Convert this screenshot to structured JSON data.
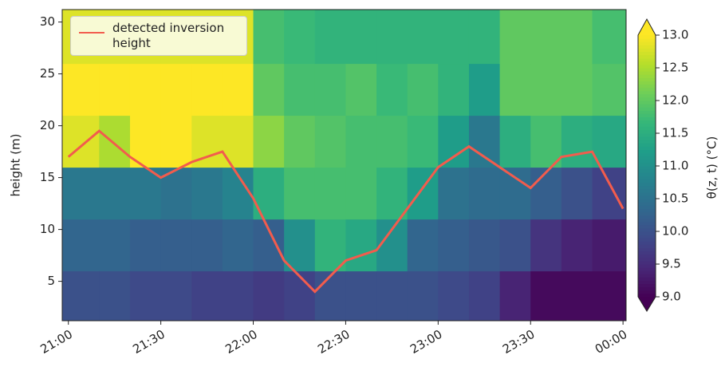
{
  "chart_data": {
    "type": "heatmap",
    "ylabel": "height (m)",
    "colorbar_label": "θ(z, t) (°C)",
    "colormap": "viridis",
    "xlim": [
      "20:58",
      "00:01"
    ],
    "ylim": [
      1.2,
      31.2
    ],
    "clim": [
      9,
      13
    ],
    "xticks": [
      "21:00",
      "21:30",
      "22:00",
      "22:30",
      "23:00",
      "23:30",
      "00:00"
    ],
    "yticks": [
      5,
      10,
      15,
      20,
      25,
      30
    ],
    "colorbar_ticks": [
      {
        "value": 9,
        "label": "9.0"
      },
      {
        "value": 9.5,
        "label": "9.5"
      },
      {
        "value": 10,
        "label": "10.0"
      },
      {
        "value": 10.5,
        "label": "10.5"
      },
      {
        "value": 11,
        "label": "11.0"
      },
      {
        "value": 11.5,
        "label": "11.5"
      },
      {
        "value": 12,
        "label": "12.0"
      },
      {
        "value": 12.5,
        "label": "12.5"
      },
      {
        "value": 13,
        "label": "13.0"
      }
    ],
    "x_edges": [
      "20:58",
      "21:10",
      "21:20",
      "21:30",
      "21:40",
      "21:50",
      "22:00",
      "22:10",
      "22:20",
      "22:30",
      "22:40",
      "22:50",
      "23:00",
      "23:10",
      "23:20",
      "23:30",
      "23:40",
      "23:50",
      "00:01"
    ],
    "y_edges": [
      1.2,
      6,
      11,
      16,
      21,
      26,
      31.2
    ],
    "z": [
      [
        10.0,
        10.3,
        10.6,
        12.8,
        13,
        12.8
      ],
      [
        10.0,
        10.3,
        10.6,
        12.5,
        13,
        12.8
      ],
      [
        9.9,
        10.2,
        10.6,
        13,
        13,
        12.8
      ],
      [
        9.9,
        10.2,
        10.5,
        13,
        13,
        12.8
      ],
      [
        9.8,
        10.2,
        10.6,
        12.8,
        13,
        12.8
      ],
      [
        9.8,
        10.3,
        10.8,
        12.8,
        13,
        12.8
      ],
      [
        9.7,
        10.2,
        11.5,
        12.3,
        12.0,
        11.8
      ],
      [
        9.8,
        11.0,
        11.8,
        12.0,
        11.8,
        11.7
      ],
      [
        10.0,
        11.6,
        11.8,
        11.9,
        11.8,
        11.6
      ],
      [
        10.0,
        11.4,
        11.8,
        11.8,
        11.9,
        11.6
      ],
      [
        10.0,
        11.0,
        11.6,
        11.8,
        11.7,
        11.6
      ],
      [
        10.0,
        10.3,
        11.2,
        11.7,
        11.8,
        11.6
      ],
      [
        9.9,
        10.2,
        10.5,
        11.2,
        11.6,
        11.6
      ],
      [
        9.8,
        10.1,
        10.4,
        10.6,
        11.2,
        11.6
      ],
      [
        9.4,
        10.0,
        10.4,
        11.5,
        12.0,
        12.0
      ],
      [
        9.1,
        9.6,
        10.2,
        11.8,
        12.0,
        12.0
      ],
      [
        9.1,
        9.4,
        10.0,
        11.5,
        12.0,
        12.0
      ],
      [
        9.1,
        9.3,
        9.8,
        11.4,
        11.9,
        11.8
      ]
    ],
    "series": [
      {
        "name": "detected inversion height",
        "color": "#f25c4d",
        "x": [
          "21:00",
          "21:10",
          "21:20",
          "21:30",
          "21:40",
          "21:50",
          "22:00",
          "22:10",
          "22:20",
          "22:30",
          "22:40",
          "22:50",
          "23:00",
          "23:10",
          "23:20",
          "23:30",
          "23:40",
          "23:50",
          "00:00"
        ],
        "values": [
          17,
          19.5,
          17,
          15,
          16.5,
          17.5,
          13,
          7,
          4,
          7,
          8,
          12,
          16,
          18,
          16,
          14,
          17,
          17.5,
          12
        ]
      }
    ]
  }
}
